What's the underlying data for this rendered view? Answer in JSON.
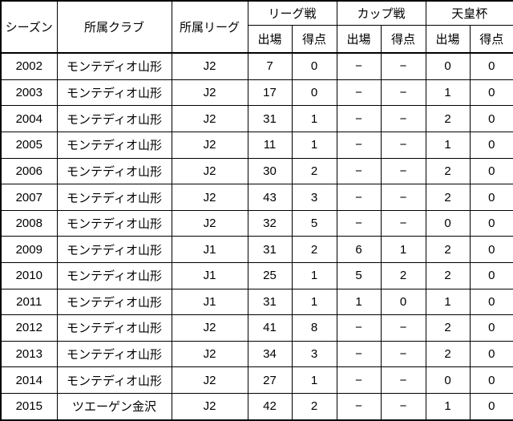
{
  "colors": {
    "background": "#ffffff",
    "text": "#000000",
    "border": "#000000",
    "dotted_divider": "#777777"
  },
  "table": {
    "header": {
      "season": "シーズン",
      "club": "所属クラブ",
      "league": "所属リーグ",
      "groups": [
        "リーグ戦",
        "カップ戦",
        "天皇杯"
      ],
      "appearances": "出場",
      "goals": "得点"
    },
    "rows": [
      {
        "season": "2002",
        "club": "モンテディオ山形",
        "league": "J2",
        "league_apps": "7",
        "league_goals": "0",
        "cup_apps": "−",
        "cup_goals": "−",
        "emperor_apps": "0",
        "emperor_goals": "0"
      },
      {
        "season": "2003",
        "club": "モンテディオ山形",
        "league": "J2",
        "league_apps": "17",
        "league_goals": "0",
        "cup_apps": "−",
        "cup_goals": "−",
        "emperor_apps": "1",
        "emperor_goals": "0"
      },
      {
        "season": "2004",
        "club": "モンテディオ山形",
        "league": "J2",
        "league_apps": "31",
        "league_goals": "1",
        "cup_apps": "−",
        "cup_goals": "−",
        "emperor_apps": "2",
        "emperor_goals": "0"
      },
      {
        "season": "2005",
        "club": "モンテディオ山形",
        "league": "J2",
        "league_apps": "11",
        "league_goals": "1",
        "cup_apps": "−",
        "cup_goals": "−",
        "emperor_apps": "1",
        "emperor_goals": "0"
      },
      {
        "season": "2006",
        "club": "モンテディオ山形",
        "league": "J2",
        "league_apps": "30",
        "league_goals": "2",
        "cup_apps": "−",
        "cup_goals": "−",
        "emperor_apps": "2",
        "emperor_goals": "0"
      },
      {
        "season": "2007",
        "club": "モンテディオ山形",
        "league": "J2",
        "league_apps": "43",
        "league_goals": "3",
        "cup_apps": "−",
        "cup_goals": "−",
        "emperor_apps": "2",
        "emperor_goals": "0"
      },
      {
        "season": "2008",
        "club": "モンテディオ山形",
        "league": "J2",
        "league_apps": "32",
        "league_goals": "5",
        "cup_apps": "−",
        "cup_goals": "−",
        "emperor_apps": "0",
        "emperor_goals": "0"
      },
      {
        "season": "2009",
        "club": "モンテディオ山形",
        "league": "J1",
        "league_apps": "31",
        "league_goals": "2",
        "cup_apps": "6",
        "cup_goals": "1",
        "emperor_apps": "2",
        "emperor_goals": "0"
      },
      {
        "season": "2010",
        "club": "モンテディオ山形",
        "league": "J1",
        "league_apps": "25",
        "league_goals": "1",
        "cup_apps": "5",
        "cup_goals": "2",
        "emperor_apps": "2",
        "emperor_goals": "0"
      },
      {
        "season": "2011",
        "club": "モンテディオ山形",
        "league": "J1",
        "league_apps": "31",
        "league_goals": "1",
        "cup_apps": "1",
        "cup_goals": "0",
        "emperor_apps": "1",
        "emperor_goals": "0"
      },
      {
        "season": "2012",
        "club": "モンテディオ山形",
        "league": "J2",
        "league_apps": "41",
        "league_goals": "8",
        "cup_apps": "−",
        "cup_goals": "−",
        "emperor_apps": "2",
        "emperor_goals": "0"
      },
      {
        "season": "2013",
        "club": "モンテディオ山形",
        "league": "J2",
        "league_apps": "34",
        "league_goals": "3",
        "cup_apps": "−",
        "cup_goals": "−",
        "emperor_apps": "2",
        "emperor_goals": "0"
      },
      {
        "season": "2014",
        "club": "モンテディオ山形",
        "league": "J2",
        "league_apps": "27",
        "league_goals": "1",
        "cup_apps": "−",
        "cup_goals": "−",
        "emperor_apps": "0",
        "emperor_goals": "0"
      },
      {
        "season": "2015",
        "club": "ツエーゲン金沢",
        "league": "J2",
        "league_apps": "42",
        "league_goals": "2",
        "cup_apps": "−",
        "cup_goals": "−",
        "emperor_apps": "1",
        "emperor_goals": "0"
      }
    ]
  }
}
